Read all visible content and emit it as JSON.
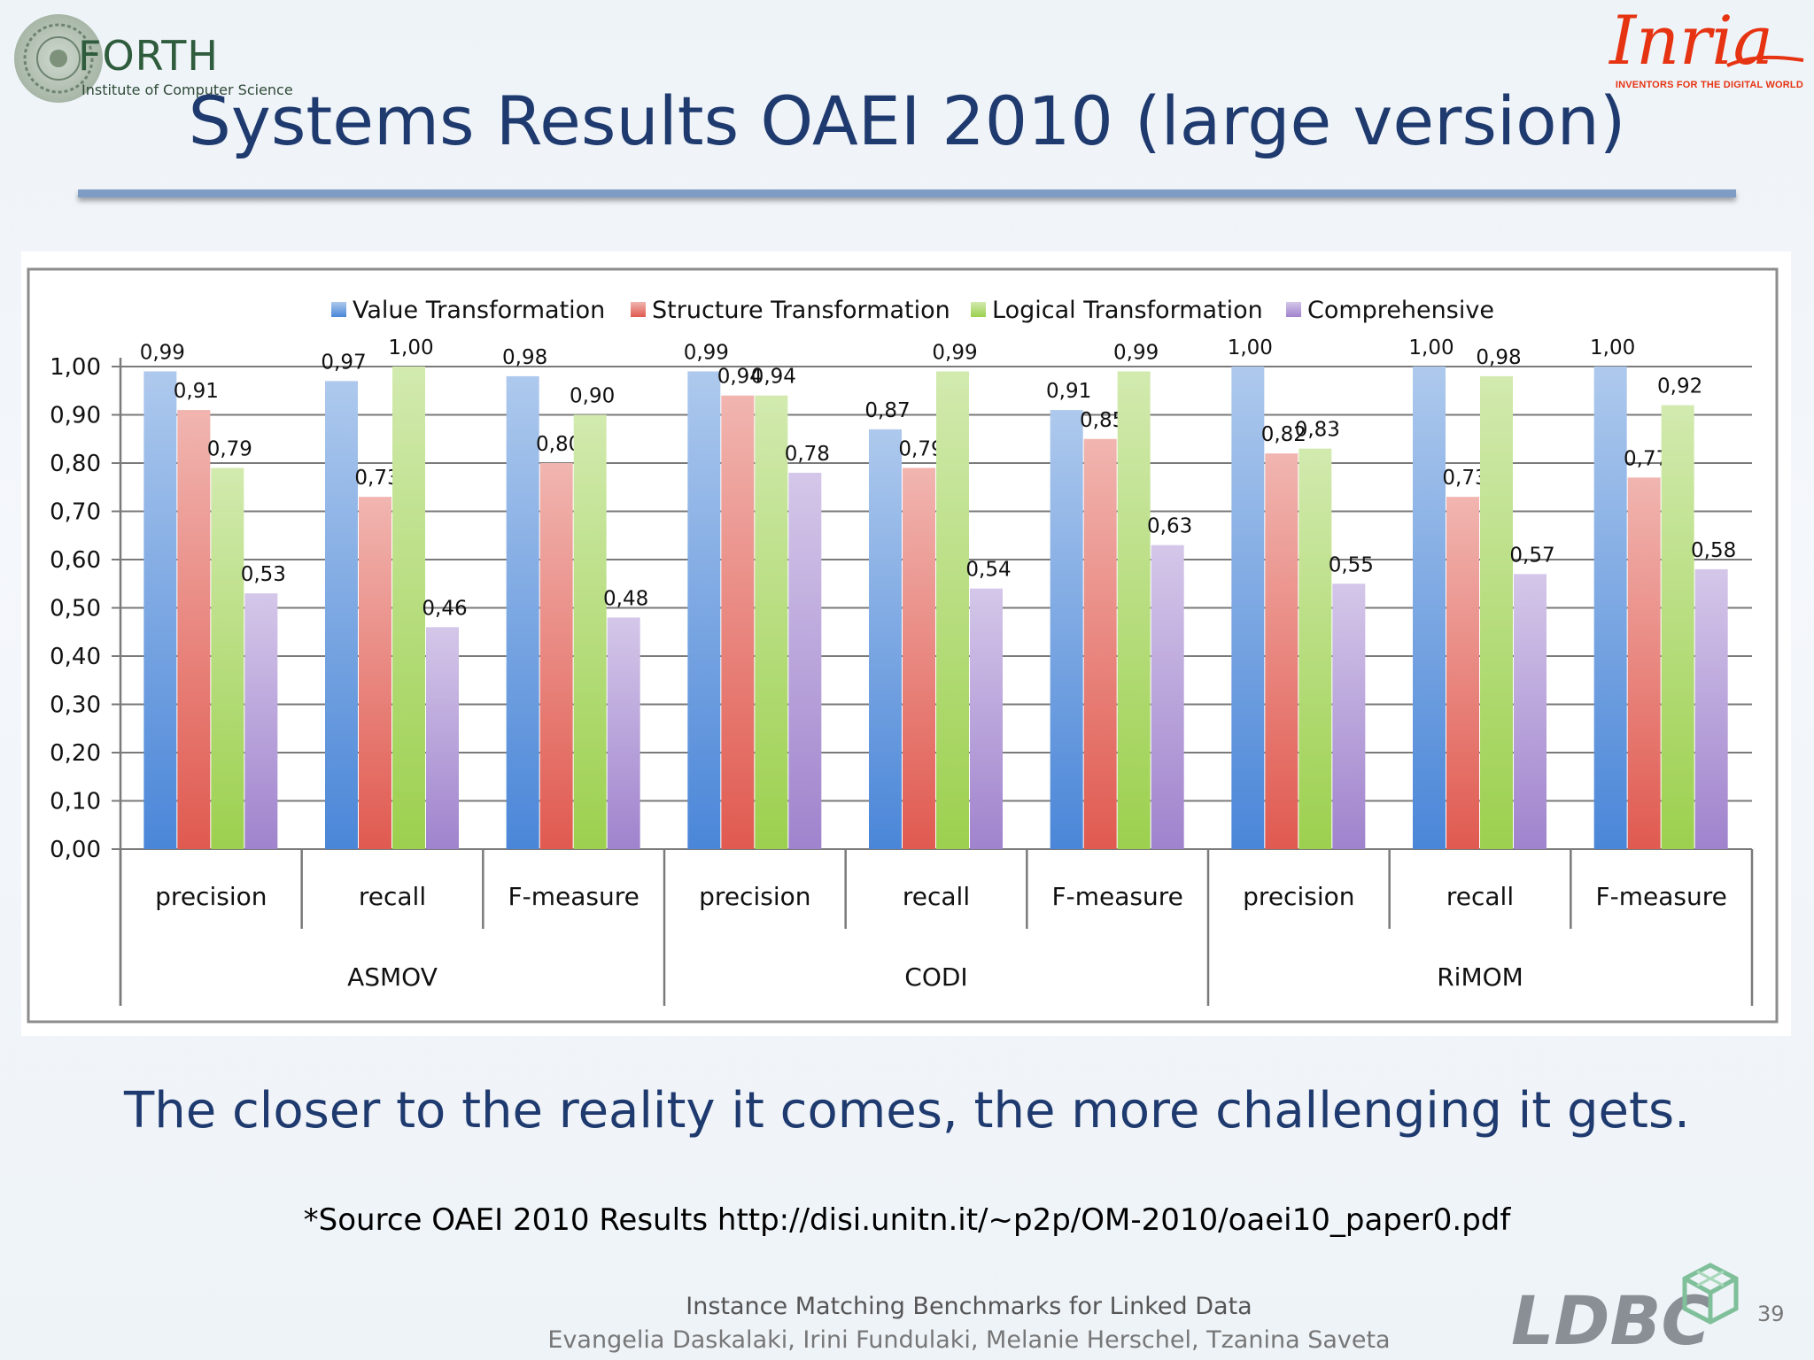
{
  "header": {
    "forth_name": "FORTH",
    "forth_subtitle": "Institute of Computer Science",
    "inria_name": "Inria",
    "inria_tagline": "INVENTORS FOR THE DIGITAL WORLD"
  },
  "slide": {
    "title": "Systems Results OAEI 2010 (large version)",
    "caption": "The closer to the reality it comes, the more challenging it gets.",
    "source": "*Source OAEI 2010 Results http://disi.unitn.it/~p2p/OM-2010/oaei10_paper0.pdf"
  },
  "footer": {
    "line1": "Instance Matching Benchmarks for Linked Data",
    "line2": "Evangelia Daskalaki, Irini Fundulaki, Melanie Herschel, Tzanina Saveta",
    "logo": "LDBC",
    "page": "39"
  },
  "colors": {
    "value": "#4a86d8",
    "structure": "#e05a50",
    "logical": "#9cd04e",
    "comprehensive": "#a083cd",
    "title": "#1f3a6e"
  },
  "chart_data": {
    "type": "bar",
    "title": "",
    "xlabel": "",
    "ylabel": "",
    "ylim": [
      0,
      1
    ],
    "yticks": [
      "0,00",
      "0,10",
      "0,20",
      "0,30",
      "0,40",
      "0,50",
      "0,60",
      "0,70",
      "0,80",
      "0,90",
      "1,00"
    ],
    "groups": [
      "ASMOV",
      "CODI",
      "RiMOM"
    ],
    "categories": [
      "precision",
      "recall",
      "F-measure",
      "precision",
      "recall",
      "F-measure",
      "precision",
      "recall",
      "F-measure"
    ],
    "series": [
      {
        "name": "Value Transformation",
        "values": [
          0.99,
          0.97,
          0.98,
          0.99,
          0.87,
          0.91,
          1.0,
          1.0,
          1.0
        ],
        "labels": [
          "0,99",
          "0,97",
          "0,98",
          "0,99",
          "0,87",
          "0,91",
          "1,00",
          "1,00",
          "1,00"
        ]
      },
      {
        "name": "Structure Transformation",
        "values": [
          0.91,
          0.73,
          0.8,
          0.94,
          0.79,
          0.85,
          0.82,
          0.73,
          0.77
        ],
        "labels": [
          "0,91",
          "0,73",
          "0,80",
          "0,94",
          "0,79",
          "0,85",
          "0,82",
          "0,73",
          "0,77"
        ]
      },
      {
        "name": "Logical Transformation",
        "values": [
          0.79,
          1.0,
          0.9,
          0.94,
          0.99,
          0.99,
          0.83,
          0.98,
          0.92
        ],
        "labels": [
          "0,79",
          "1,00",
          "0,90",
          "0,94",
          "0,99",
          "0,99",
          "0,83",
          "0,98",
          "0,92"
        ]
      },
      {
        "name": "Comprehensive",
        "values": [
          0.53,
          0.46,
          0.48,
          0.78,
          0.54,
          0.63,
          0.55,
          0.57,
          0.58
        ],
        "labels": [
          "0,53",
          "0,46",
          "0,48",
          "0,78",
          "0,54",
          "0,63",
          "0,55",
          "0,57",
          "0,58"
        ]
      }
    ],
    "legend_position": "top",
    "grid": true
  }
}
